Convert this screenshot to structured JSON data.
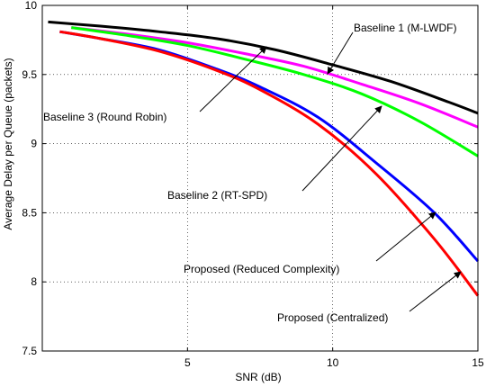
{
  "chart_data": {
    "type": "line",
    "title": "",
    "xlabel": "SNR (dB)",
    "ylabel": "Average Delay per Queue (packets)",
    "xlim": [
      0,
      15
    ],
    "ylim": [
      7.5,
      10
    ],
    "xticks": [
      5,
      10,
      15
    ],
    "yticks": [
      7.5,
      8,
      8.5,
      9,
      9.5,
      10
    ],
    "xtick_labels": [
      "5",
      "10",
      "15"
    ],
    "ytick_labels": [
      "7.5",
      "8",
      "8.5",
      "9",
      "9.5",
      "10"
    ],
    "grid": true,
    "series": [
      {
        "name": "Baseline 1 (M-LWDF)",
        "color": "#000000",
        "x": [
          0.2,
          2,
          4,
          6,
          8,
          10,
          12,
          14,
          15
        ],
        "y": [
          9.88,
          9.85,
          9.81,
          9.76,
          9.68,
          9.57,
          9.45,
          9.3,
          9.22
        ]
      },
      {
        "name": "Baseline 3 (Round Robin)",
        "color": "#ff00ff",
        "x": [
          1,
          3,
          5,
          7,
          9,
          11,
          13,
          15
        ],
        "y": [
          9.84,
          9.79,
          9.73,
          9.65,
          9.56,
          9.43,
          9.29,
          9.12
        ]
      },
      {
        "name": "Baseline 2 (RT-SPD)",
        "color": "#00ff00",
        "x": [
          1,
          3,
          5,
          7,
          9,
          11,
          13,
          15
        ],
        "y": [
          9.84,
          9.78,
          9.71,
          9.61,
          9.5,
          9.36,
          9.16,
          8.91
        ]
      },
      {
        "name": "Proposed (Reduced Complexity)",
        "color": "#0000ff",
        "x": [
          0.6,
          2,
          4,
          6,
          7.5,
          9.5,
          11.5,
          13.5,
          15
        ],
        "y": [
          9.81,
          9.76,
          9.68,
          9.54,
          9.41,
          9.19,
          8.86,
          8.5,
          8.15
        ]
      },
      {
        "name": "Proposed (Centralized)",
        "color": "#ff0000",
        "x": [
          0.6,
          2,
          4,
          6,
          7.5,
          9.5,
          11.5,
          13.5,
          15
        ],
        "y": [
          9.81,
          9.76,
          9.67,
          9.53,
          9.39,
          9.14,
          8.78,
          8.31,
          7.9
        ]
      }
    ],
    "annotations": [
      {
        "text": "Baseline 1 (M-LWDF)"
      },
      {
        "text": "Baseline 3 (Round Robin)"
      },
      {
        "text": "Baseline 2 (RT-SPD)"
      },
      {
        "text": "Proposed (Reduced Complexity)"
      },
      {
        "text": "Proposed (Centralized)"
      }
    ]
  }
}
